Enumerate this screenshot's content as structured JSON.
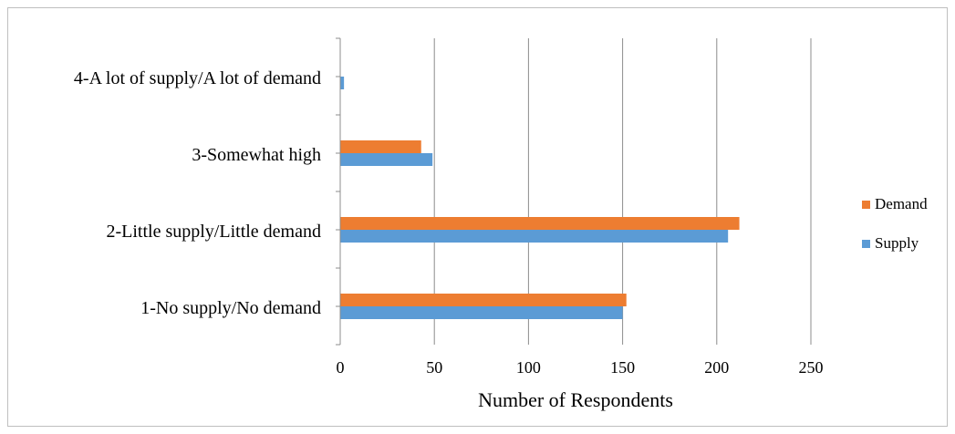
{
  "chart_data": {
    "type": "bar",
    "orientation": "horizontal",
    "categories": [
      "1-No supply/No demand",
      "2-Little supply/Little demand",
      "3-Somewhat high",
      "4-A lot of supply/A lot of demand"
    ],
    "series": [
      {
        "name": "Supply",
        "values": [
          150,
          206,
          49,
          2
        ]
      },
      {
        "name": "Demand",
        "values": [
          152,
          212,
          43,
          0
        ]
      }
    ],
    "xlabel": "Number of Respondents",
    "ylabel": "",
    "xlim": [
      0,
      250
    ],
    "xticks": [
      "0",
      "50",
      "100",
      "150",
      "200",
      "250"
    ],
    "grid": "vertical",
    "legend_position": "right",
    "colors": {
      "Supply": "#5b9bd5",
      "Demand": "#ed7d31"
    }
  }
}
